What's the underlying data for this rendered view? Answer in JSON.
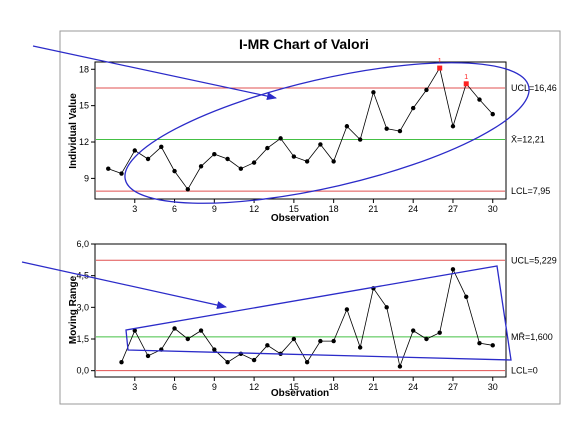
{
  "title": "I-MR Chart of Valori",
  "chart_data": [
    {
      "type": "line",
      "name": "individual",
      "ylabel": "Individual Value",
      "xlabel": "Observation",
      "x": [
        1,
        2,
        3,
        4,
        5,
        6,
        7,
        8,
        9,
        10,
        11,
        12,
        13,
        14,
        15,
        16,
        17,
        18,
        19,
        20,
        21,
        22,
        23,
        24,
        25,
        26,
        27,
        28,
        29,
        30
      ],
      "values": [
        9.8,
        9.4,
        11.3,
        10.6,
        11.6,
        9.6,
        8.1,
        10.0,
        11.0,
        10.6,
        9.8,
        10.3,
        11.5,
        12.3,
        10.8,
        10.4,
        11.8,
        10.4,
        13.3,
        12.2,
        16.1,
        13.1,
        12.9,
        14.8,
        16.3,
        18.1,
        13.3,
        16.8,
        15.5,
        14.3
      ],
      "out_of_control": [
        26,
        28
      ],
      "out_of_control_labels": [
        "1",
        "1"
      ],
      "ylim": [
        7.3,
        18.6
      ],
      "xlim": [
        0,
        31
      ],
      "yticks": [
        9,
        12,
        15,
        18
      ],
      "ytick_labels": [
        "9",
        "12",
        "15",
        "18"
      ],
      "xticks": [
        3,
        6,
        9,
        12,
        15,
        18,
        21,
        24,
        27,
        30
      ],
      "xtick_labels": [
        "3",
        "6",
        "9",
        "12",
        "15",
        "18",
        "21",
        "24",
        "27",
        "30"
      ],
      "ucl": 16.46,
      "center": 12.21,
      "lcl": 7.95,
      "ucl_label": "UCL=16,46",
      "center_label": "X̄=12,21",
      "lcl_label": "LCL=7,95",
      "colors": {
        "limit": "#e05050",
        "center": "#44c044",
        "line": "#000000",
        "point": "#000000",
        "flag": "#ff2020"
      },
      "annotation_color": "#2b2bc9",
      "annotation": "blue arrow pointing to an ellipse enclosing observations 11-30"
    },
    {
      "type": "line",
      "name": "moving_range",
      "ylabel": "Moving Range",
      "xlabel": "Observation",
      "x": [
        2,
        3,
        4,
        5,
        6,
        7,
        8,
        9,
        10,
        11,
        12,
        13,
        14,
        15,
        16,
        17,
        18,
        19,
        20,
        21,
        22,
        23,
        24,
        25,
        26,
        27,
        28,
        29,
        30
      ],
      "values": [
        0.4,
        1.9,
        0.7,
        1.0,
        2.0,
        1.5,
        1.9,
        1.0,
        0.4,
        0.8,
        0.5,
        1.2,
        0.8,
        1.5,
        0.4,
        1.4,
        1.4,
        2.9,
        1.1,
        3.9,
        3.0,
        0.2,
        1.9,
        1.5,
        1.8,
        4.8,
        3.5,
        1.3,
        1.2
      ],
      "ylim": [
        -0.3,
        6.0
      ],
      "xlim": [
        0,
        31
      ],
      "yticks": [
        0.0,
        1.5,
        3.0,
        4.5,
        6.0
      ],
      "ytick_labels": [
        "0,0",
        "1,5",
        "3,0",
        "4,5",
        "6,0"
      ],
      "xticks": [
        3,
        6,
        9,
        12,
        15,
        18,
        21,
        24,
        27,
        30
      ],
      "xtick_labels": [
        "3",
        "6",
        "9",
        "12",
        "15",
        "18",
        "21",
        "24",
        "27",
        "30"
      ],
      "ucl": 5.229,
      "center": 1.6,
      "lcl": 0,
      "ucl_label": "UCL=5,229",
      "center_label": "MR̄=1,600",
      "lcl_label": "LCL=0",
      "colors": {
        "limit": "#e05050",
        "center": "#44c044",
        "line": "#000000",
        "point": "#000000"
      },
      "annotation_color": "#2b2bc9",
      "annotation": "blue arrow pointing to a quadrilateral enclosing the upward trend of moving ranges"
    }
  ]
}
